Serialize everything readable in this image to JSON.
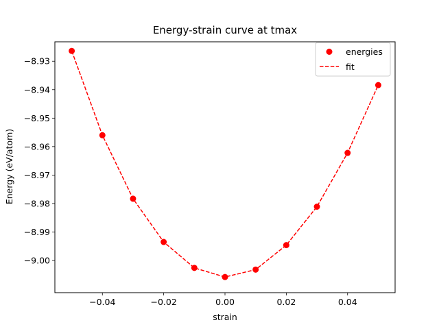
{
  "chart_data": {
    "type": "line",
    "title": "Energy-strain curve at tmax",
    "xlabel": "strain",
    "ylabel": "Energy (eV/atom)",
    "xlim": [
      -0.0555,
      0.0555
    ],
    "ylim": [
      -9.0113,
      -8.9232
    ],
    "x_ticks": [
      -0.04,
      -0.02,
      0.0,
      0.02,
      0.04
    ],
    "x_tick_labels": [
      "−0.04",
      "−0.02",
      "0.00",
      "0.02",
      "0.04"
    ],
    "y_ticks": [
      -8.93,
      -8.94,
      -8.95,
      -8.96,
      -8.97,
      -8.98,
      -8.99,
      -9.0
    ],
    "y_tick_labels": [
      "−8.93",
      "−8.94",
      "−8.95",
      "−8.96",
      "−8.97",
      "−8.98",
      "−8.99",
      "−9.00"
    ],
    "grid": false,
    "legend_position": "top-right",
    "series": [
      {
        "name": "energies",
        "style": "markers",
        "color": "#ff0000",
        "x": [
          -0.05,
          -0.04,
          -0.03,
          -0.02,
          -0.01,
          0.0,
          0.01,
          0.02,
          0.03,
          0.04,
          0.05
        ],
        "y": [
          -8.9264,
          -8.956,
          -8.9783,
          -8.9935,
          -9.0026,
          -9.0058,
          -9.0032,
          -8.9946,
          -8.9811,
          -8.9622,
          -8.9384
        ]
      },
      {
        "name": "fit",
        "style": "dashed-line",
        "color": "#ff0000",
        "x": [
          -0.05,
          -0.04,
          -0.03,
          -0.02,
          -0.01,
          0.0,
          0.01,
          0.02,
          0.03,
          0.04,
          0.05
        ],
        "y": [
          -8.9264,
          -8.956,
          -8.9783,
          -8.9935,
          -9.0026,
          -9.0058,
          -9.0032,
          -8.9946,
          -8.9811,
          -8.9622,
          -8.9384
        ]
      }
    ]
  }
}
